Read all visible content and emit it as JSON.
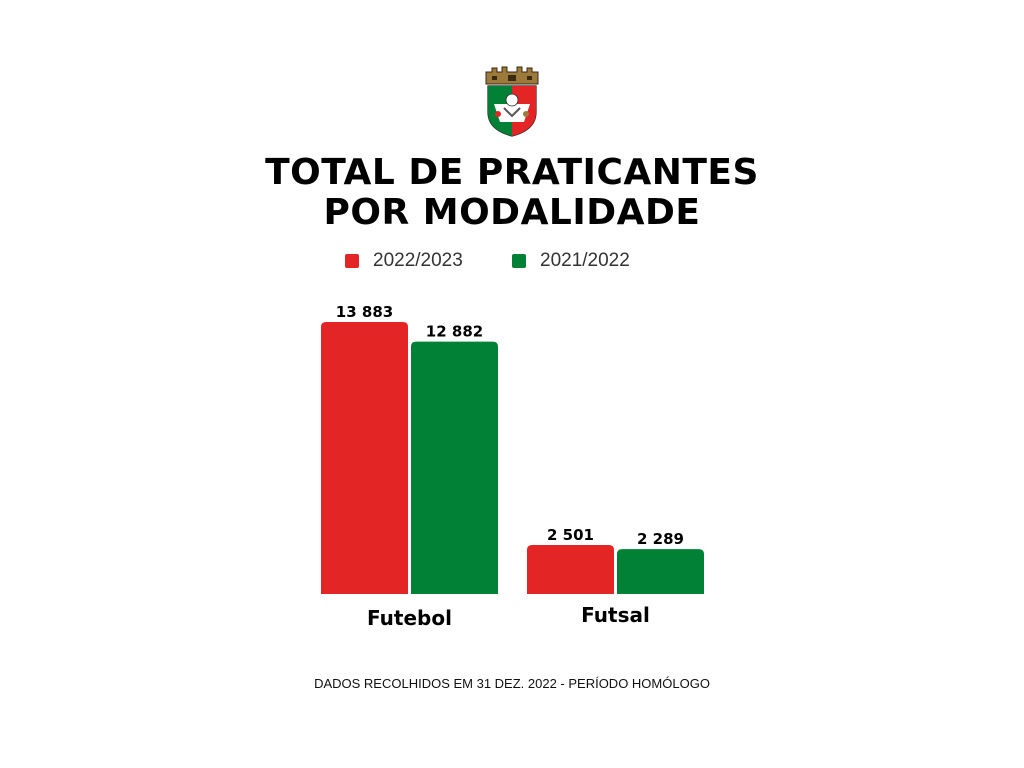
{
  "colors": {
    "red": "#e42526",
    "green": "#008135"
  },
  "crest": {
    "icon": "municipal-coat-of-arms"
  },
  "chart_data": {
    "type": "bar",
    "title_lines": [
      "TOTAL DE PRATICANTES",
      "POR MODALIDADE"
    ],
    "categories": [
      "Futebol",
      "Futsal"
    ],
    "series": [
      {
        "name": "2022/2023",
        "values": [
          13883,
          2501
        ],
        "labels": [
          "13 883",
          "2 501"
        ],
        "color": "#e42526"
      },
      {
        "name": "2021/2022",
        "values": [
          12882,
          2289
        ],
        "labels": [
          "12 882",
          "2 289"
        ],
        "color": "#008135"
      }
    ],
    "legend_position": "top",
    "grid": false,
    "ylim": [
      0,
      13883
    ]
  },
  "footnote": "DADOS RECOLHIDOS EM 31 DEZ. 2022 - PERÍODO HOMÓLOGO"
}
